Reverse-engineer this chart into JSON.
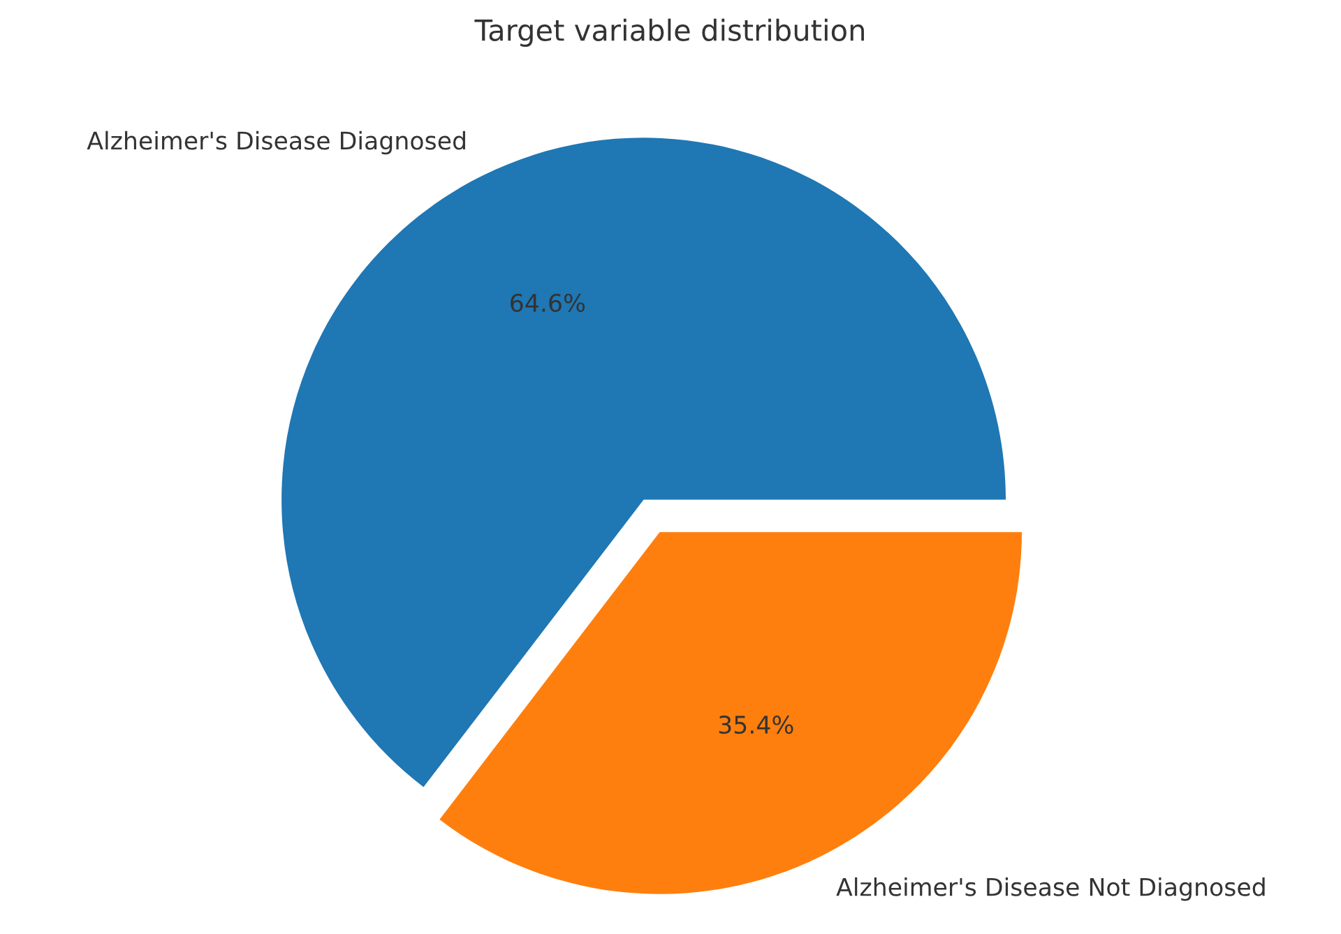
{
  "chart_data": {
    "type": "pie",
    "title": "Target variable distribution",
    "categories": [
      "Alzheimer's Disease Diagnosed",
      "Alzheimer's Disease Not Diagnosed"
    ],
    "values": [
      64.6,
      35.4
    ],
    "colors": [
      "#1f77b4",
      "#ff7f0e"
    ],
    "value_labels": [
      "64.6%",
      "35.4%"
    ]
  }
}
